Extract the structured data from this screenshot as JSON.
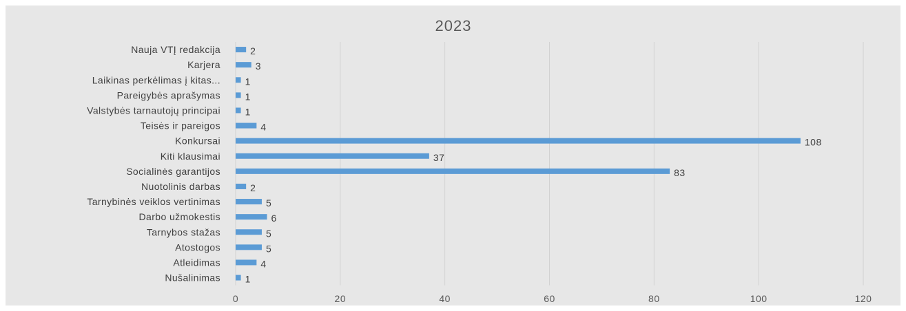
{
  "chart_data": {
    "type": "bar",
    "orientation": "horizontal",
    "title": "2023",
    "xlabel": "",
    "ylabel": "",
    "xlim": [
      0,
      120
    ],
    "x_ticks": [
      0,
      20,
      40,
      60,
      80,
      100,
      120
    ],
    "grid": true,
    "legend": "none",
    "bar_color": "#5b9bd5",
    "background_color": "#e7e7e7",
    "categories": [
      "Nauja VTĮ redakcija",
      "Karjera",
      "Laikinas perkėlimas į kitas...",
      "Pareigybės aprašymas",
      "Valstybės tarnautojų principai",
      "Teisės ir pareigos",
      "Konkursai",
      "Kiti klausimai",
      "Socialinės garantijos",
      "Nuotolinis darbas",
      "Tarnybinės veiklos vertinimas",
      "Darbo užmokestis",
      "Tarnybos stažas",
      "Atostogos",
      "Atleidimas",
      "Nušalinimas"
    ],
    "values": [
      2,
      3,
      1,
      1,
      1,
      4,
      108,
      37,
      83,
      2,
      5,
      6,
      5,
      5,
      4,
      1
    ]
  }
}
